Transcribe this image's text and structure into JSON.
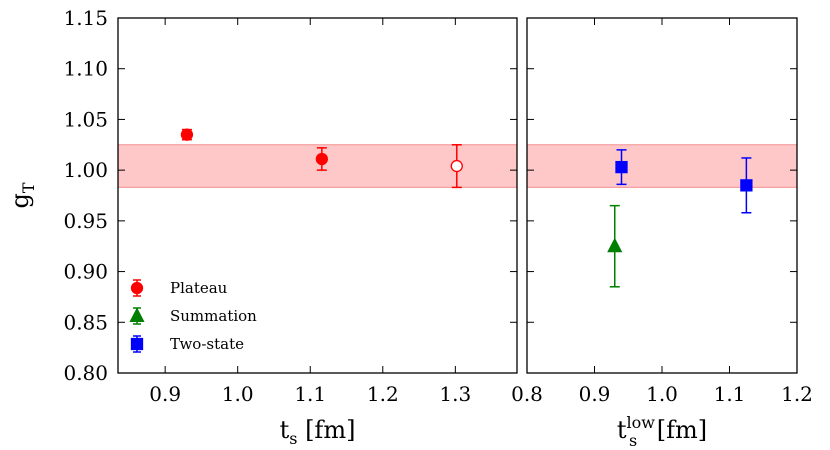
{
  "chart_data": {
    "type": "scatter",
    "ylabel_main": "g",
    "ylabel_sub": "T",
    "ylim": [
      0.8,
      1.15
    ],
    "yticks": [
      "0.80",
      "0.85",
      "0.90",
      "0.95",
      "1.00",
      "1.05",
      "1.10",
      "1.15"
    ],
    "band": {
      "low": 0.983,
      "high": 1.025,
      "color": "#ffc8c8",
      "edge": "#f4a0a0"
    },
    "panels": [
      {
        "xlabel_main": "t",
        "xlabel_sub": "s",
        "xlabel_sup": "",
        "xlabel_unit": "[fm]",
        "xlim": [
          0.835,
          1.385
        ],
        "xticks": [
          "0.9",
          "1.0",
          "1.1",
          "1.2",
          "1.3"
        ],
        "points": [
          {
            "series": "Plateau",
            "x": 0.93,
            "y": 1.035,
            "err": 0.005,
            "marker": "circle",
            "filled": true,
            "color": "#ff0000"
          },
          {
            "series": "Plateau",
            "x": 1.116,
            "y": 1.011,
            "err": 0.011,
            "marker": "circle",
            "filled": true,
            "color": "#ff0000"
          },
          {
            "series": "Plateau",
            "x": 1.302,
            "y": 1.004,
            "err": 0.021,
            "marker": "circle",
            "filled": false,
            "color": "#ff0000"
          }
        ]
      },
      {
        "xlabel_main": "t",
        "xlabel_sub": "s",
        "xlabel_sup": "low",
        "xlabel_unit": "[fm]",
        "xlim": [
          0.8,
          1.2
        ],
        "xticks": [
          "0.8",
          "0.9",
          "1.0",
          "1.1",
          "1.2"
        ],
        "points": [
          {
            "series": "Summation",
            "x": 0.93,
            "y": 0.925,
            "err": 0.04,
            "marker": "triangle",
            "filled": true,
            "color": "#007f00"
          },
          {
            "series": "Two-state",
            "x": 0.94,
            "y": 1.003,
            "err": 0.017,
            "marker": "square",
            "filled": true,
            "color": "#0000ff"
          },
          {
            "series": "Two-state",
            "x": 1.125,
            "y": 0.985,
            "err": 0.027,
            "marker": "square",
            "filled": true,
            "color": "#0000ff"
          }
        ]
      }
    ],
    "legend": {
      "placement": "lower-left",
      "entries": [
        {
          "label": "Plateau",
          "marker": "circle",
          "color": "#ff0000"
        },
        {
          "label": "Summation",
          "marker": "triangle",
          "color": "#007f00"
        },
        {
          "label": "Two-state",
          "marker": "square",
          "color": "#0000ff"
        }
      ]
    }
  }
}
